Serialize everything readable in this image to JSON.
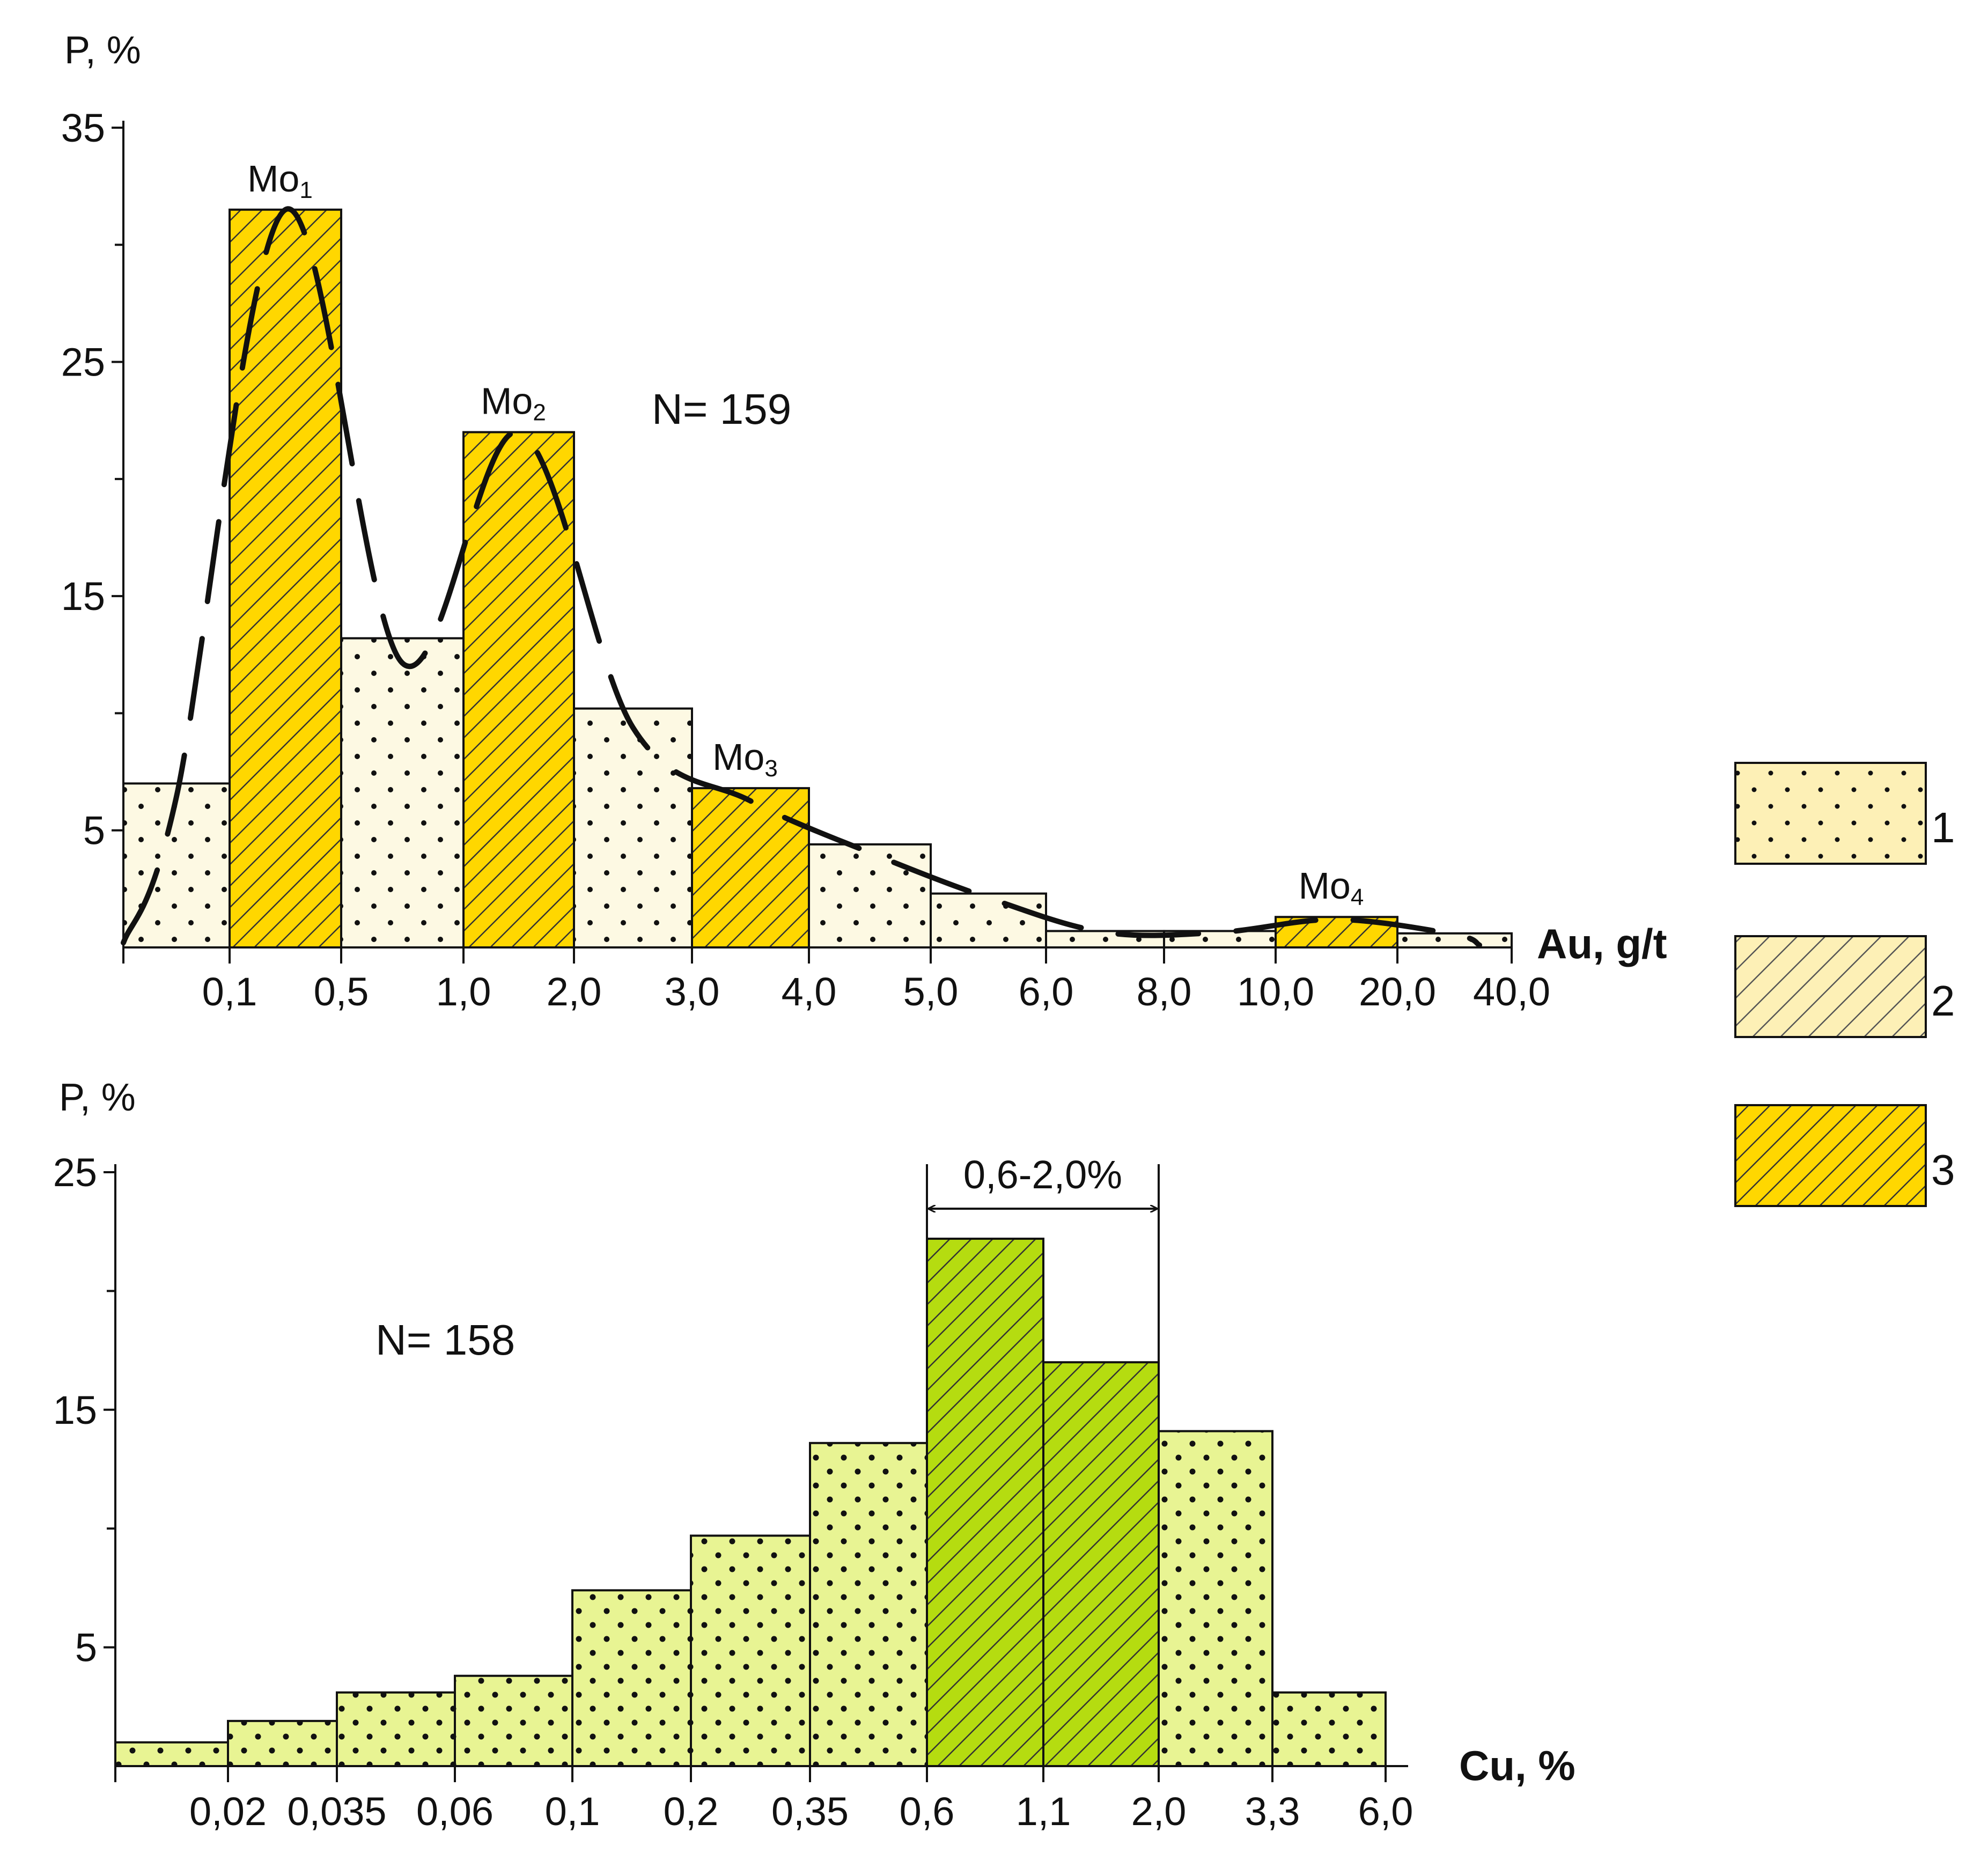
{
  "palette": {
    "cream": "#fdf9e3",
    "lightgold": "#fdf0b6",
    "gold": "#ffd700",
    "palegreen": "#e8f493",
    "green": "#b5dc10",
    "ink": "#111111"
  },
  "legend": [
    {
      "id": "1",
      "label": "1",
      "fill": "lightgold",
      "pattern": "dots"
    },
    {
      "id": "2",
      "label": "2",
      "fill": "lightgold",
      "pattern": "hatch"
    },
    {
      "id": "3",
      "label": "3",
      "fill": "gold",
      "pattern": "hatch"
    }
  ],
  "chart_data": [
    {
      "type": "bar",
      "ylabel": "P, %",
      "xlabel": "Au, g/t",
      "n_label": "N= 159",
      "ylim": [
        0,
        35
      ],
      "y_ticks": [
        "5",
        "15",
        "25",
        "35"
      ],
      "x_boundaries": [
        "0,1",
        "0,5",
        "1,0",
        "2,0",
        "3,0",
        "4,0",
        "5,0",
        "6,0",
        "8,0",
        "10,0",
        "20,0",
        "40,0"
      ],
      "bins": [
        {
          "from": "",
          "to": "0,1",
          "value": 7.0,
          "legend": "1"
        },
        {
          "from": "0,1",
          "to": "0,5",
          "value": 31.5,
          "legend": "3"
        },
        {
          "from": "0,5",
          "to": "1,0",
          "value": 13.2,
          "legend": "1"
        },
        {
          "from": "1,0",
          "to": "2,0",
          "value": 22.0,
          "legend": "3"
        },
        {
          "from": "2,0",
          "to": "3,0",
          "value": 10.2,
          "legend": "1"
        },
        {
          "from": "3,0",
          "to": "4,0",
          "value": 6.8,
          "legend": "3"
        },
        {
          "from": "4,0",
          "to": "5,0",
          "value": 4.4,
          "legend": "1"
        },
        {
          "from": "5,0",
          "to": "6,0",
          "value": 2.3,
          "legend": "1"
        },
        {
          "from": "6,0",
          "to": "8,0",
          "value": 0.7,
          "legend": "1"
        },
        {
          "from": "8,0",
          "to": "10,0",
          "value": 0.7,
          "legend": "1"
        },
        {
          "from": "10,0",
          "to": "20,0",
          "value": 1.3,
          "legend": "3"
        },
        {
          "from": "20,0",
          "to": "40,0",
          "value": 0.6,
          "legend": "1"
        }
      ],
      "modes": [
        {
          "label": "Mo",
          "sub": "1",
          "bin": 1
        },
        {
          "label": "Mo",
          "sub": "2",
          "bin": 3
        },
        {
          "label": "Mo",
          "sub": "3",
          "bin": 5
        },
        {
          "label": "Mo",
          "sub": "4",
          "bin": 10
        }
      ]
    },
    {
      "type": "bar",
      "ylabel": "P, %",
      "xlabel": "Cu, %",
      "n_label": "N= 158",
      "ylim": [
        0,
        25
      ],
      "y_ticks": [
        "5",
        "15",
        "25"
      ],
      "x_boundaries": [
        "0,02",
        "0,035",
        "0,06",
        "0,1",
        "0,2",
        "0,35",
        "0,6",
        "1,1",
        "2,0",
        "3,3",
        "6,0"
      ],
      "bins": [
        {
          "from": "",
          "to": "0,02",
          "value": 1.0,
          "pattern": "dots"
        },
        {
          "from": "0,02",
          "to": "0,035",
          "value": 1.9,
          "pattern": "dots"
        },
        {
          "from": "0,035",
          "to": "0,06",
          "value": 3.1,
          "pattern": "dots"
        },
        {
          "from": "0,06",
          "to": "0,1",
          "value": 3.8,
          "pattern": "dots"
        },
        {
          "from": "0,1",
          "to": "0,2",
          "value": 7.4,
          "pattern": "dots"
        },
        {
          "from": "0,2",
          "to": "0,35",
          "value": 9.7,
          "pattern": "dots"
        },
        {
          "from": "0,35",
          "to": "0,6",
          "value": 13.6,
          "pattern": "dots"
        },
        {
          "from": "0,6",
          "to": "1,1",
          "value": 22.2,
          "pattern": "hatch"
        },
        {
          "from": "1,1",
          "to": "2,0",
          "value": 17.0,
          "pattern": "hatch"
        },
        {
          "from": "2,0",
          "to": "3,3",
          "value": 14.1,
          "pattern": "dots"
        },
        {
          "from": "3,3",
          "to": "6,0",
          "value": 3.1,
          "pattern": "dots"
        }
      ],
      "range_annotation": {
        "label": "0,6-2,0%",
        "from": "0,6",
        "to": "2,0"
      }
    }
  ]
}
